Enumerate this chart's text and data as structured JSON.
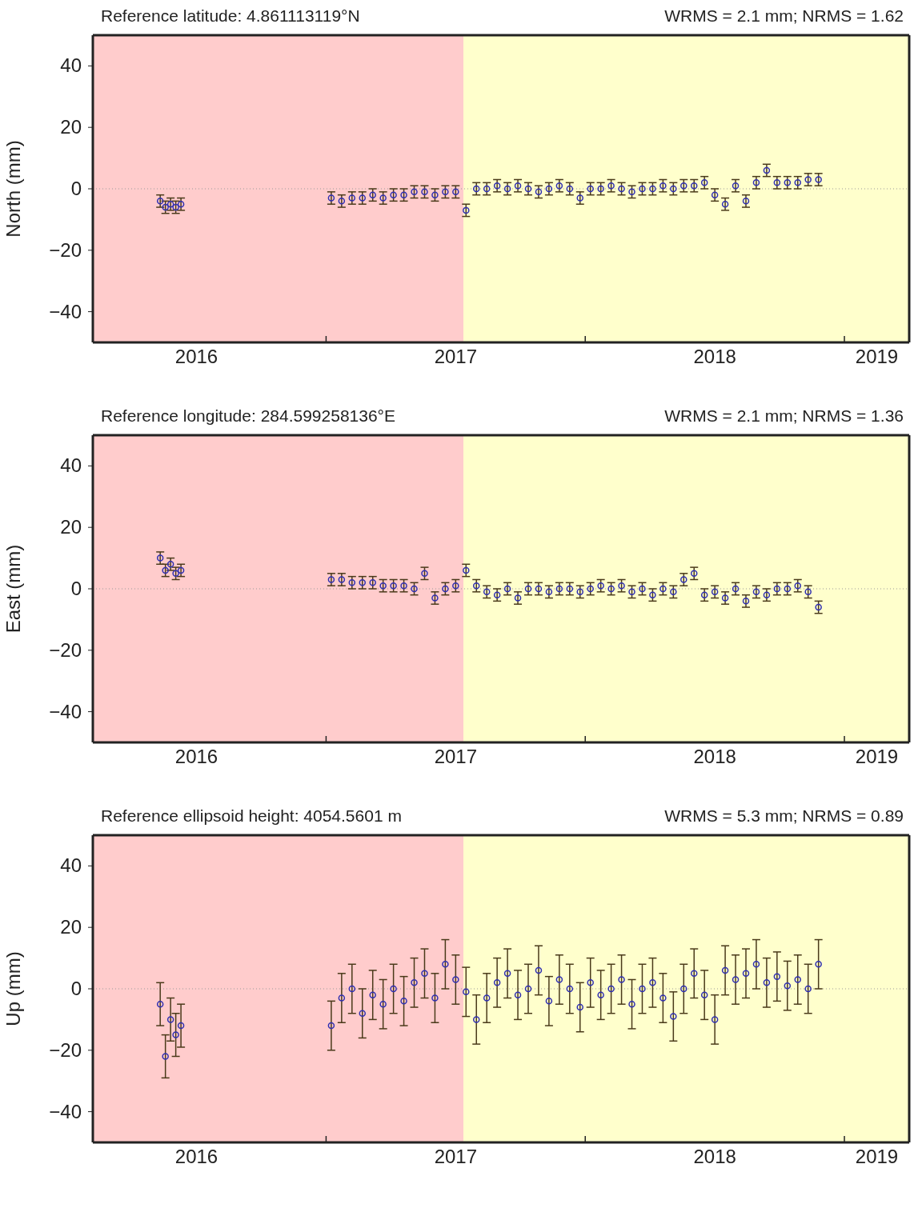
{
  "chart_data": [
    {
      "type": "scatter",
      "title": "Reference latitude: 4.861113119°N",
      "subtitle": "WRMS = 2.1 mm; NRMS = 1.62",
      "ylabel": "North (mm)",
      "color": "#3030b0",
      "marker": "circle",
      "yticks": [
        -40,
        -20,
        0,
        20,
        40
      ],
      "x": [
        2016.36,
        2016.38,
        2016.4,
        2016.42,
        2016.44,
        2017.02,
        2017.06,
        2017.1,
        2017.14,
        2017.18,
        2017.22,
        2017.26,
        2017.3,
        2017.34,
        2017.38,
        2017.42,
        2017.46,
        2017.5,
        2017.54,
        2017.58,
        2017.62,
        2017.66,
        2017.7,
        2017.74,
        2017.78,
        2017.82,
        2017.86,
        2017.9,
        2017.94,
        2017.98,
        2018.02,
        2018.06,
        2018.1,
        2018.14,
        2018.18,
        2018.22,
        2018.26,
        2018.3,
        2018.34,
        2018.38,
        2018.42,
        2018.46,
        2018.5,
        2018.54,
        2018.58,
        2018.62,
        2018.66,
        2018.7,
        2018.74,
        2018.78,
        2018.82,
        2018.86,
        2018.9
      ],
      "values": [
        -4,
        -6,
        -5,
        -6,
        -5,
        -3,
        -4,
        -3,
        -3,
        -2,
        -3,
        -2,
        -2,
        -1,
        -1,
        -2,
        -1,
        -1,
        -7,
        0,
        0,
        1,
        0,
        1,
        0,
        -1,
        0,
        1,
        0,
        -3,
        0,
        0,
        1,
        0,
        -1,
        0,
        0,
        1,
        0,
        1,
        1,
        2,
        -2,
        -5,
        1,
        -4,
        2,
        6,
        2,
        2,
        2,
        3,
        3
      ],
      "errors": [
        2,
        2,
        2,
        2,
        2,
        2,
        2,
        2,
        2,
        2,
        2,
        2,
        2,
        2,
        2,
        2,
        2,
        2,
        2,
        2,
        2,
        2,
        2,
        2,
        2,
        2,
        2,
        2,
        2,
        2,
        2,
        2,
        2,
        2,
        2,
        2,
        2,
        2,
        2,
        2,
        2,
        2,
        2,
        2,
        2,
        2,
        2,
        2,
        2,
        2,
        2,
        2,
        2
      ],
      "xlim": [
        2016.1,
        2019.25
      ],
      "xticks": [
        {
          "value": 2016.5,
          "label": "2016"
        },
        {
          "value": 2017,
          "label": null
        },
        {
          "value": 2017.5,
          "label": "2017"
        },
        {
          "value": 2018,
          "label": null
        },
        {
          "value": 2018.5,
          "label": "2018"
        },
        {
          "value": 2019,
          "label": null
        },
        {
          "value": 2019.125,
          "label": "2019"
        }
      ],
      "ylim": [
        -50,
        50
      ],
      "bands": [
        {
          "axis": "x",
          "from": 2016.1,
          "to": 2017.53,
          "color": "#ffcccc"
        },
        {
          "axis": "x",
          "from": 2017.53,
          "to": 2019.25,
          "color": "#ffffcc"
        }
      ],
      "ref_lines": [
        {
          "axis": "y",
          "value": 0,
          "line_style": "dotted",
          "color": "#999999"
        }
      ]
    },
    {
      "type": "scatter",
      "title": "Reference longitude: 284.599258136°E",
      "subtitle": "WRMS = 2.1 mm; NRMS = 1.36",
      "ylabel": "East (mm)",
      "color": "#3030b0",
      "marker": "circle",
      "yticks": [
        -40,
        -20,
        0,
        20,
        40
      ],
      "x": [
        2016.36,
        2016.38,
        2016.4,
        2016.42,
        2016.44,
        2017.02,
        2017.06,
        2017.1,
        2017.14,
        2017.18,
        2017.22,
        2017.26,
        2017.3,
        2017.34,
        2017.38,
        2017.42,
        2017.46,
        2017.5,
        2017.54,
        2017.58,
        2017.62,
        2017.66,
        2017.7,
        2017.74,
        2017.78,
        2017.82,
        2017.86,
        2017.9,
        2017.94,
        2017.98,
        2018.02,
        2018.06,
        2018.1,
        2018.14,
        2018.18,
        2018.22,
        2018.26,
        2018.3,
        2018.34,
        2018.38,
        2018.42,
        2018.46,
        2018.5,
        2018.54,
        2018.58,
        2018.62,
        2018.66,
        2018.7,
        2018.74,
        2018.78,
        2018.82,
        2018.86,
        2018.9
      ],
      "values": [
        10,
        6,
        8,
        5,
        6,
        3,
        3,
        2,
        2,
        2,
        1,
        1,
        1,
        0,
        5,
        -3,
        0,
        1,
        6,
        1,
        -1,
        -2,
        0,
        -3,
        0,
        0,
        -1,
        0,
        0,
        -1,
        0,
        1,
        0,
        1,
        -1,
        0,
        -2,
        0,
        -1,
        3,
        5,
        -2,
        -1,
        -3,
        0,
        -4,
        -1,
        -2,
        0,
        0,
        1,
        -1,
        -6
      ],
      "errors": [
        2,
        2,
        2,
        2,
        2,
        2,
        2,
        2,
        2,
        2,
        2,
        2,
        2,
        2,
        2,
        2,
        2,
        2,
        2,
        2,
        2,
        2,
        2,
        2,
        2,
        2,
        2,
        2,
        2,
        2,
        2,
        2,
        2,
        2,
        2,
        2,
        2,
        2,
        2,
        2,
        2,
        2,
        2,
        2,
        2,
        2,
        2,
        2,
        2,
        2,
        2,
        2,
        2
      ],
      "xlim": [
        2016.1,
        2019.25
      ],
      "xticks": [
        {
          "value": 2016.5,
          "label": "2016"
        },
        {
          "value": 2017,
          "label": null
        },
        {
          "value": 2017.5,
          "label": "2017"
        },
        {
          "value": 2018,
          "label": null
        },
        {
          "value": 2018.5,
          "label": "2018"
        },
        {
          "value": 2019,
          "label": null
        },
        {
          "value": 2019.125,
          "label": "2019"
        }
      ],
      "ylim": [
        -50,
        50
      ],
      "bands": [
        {
          "axis": "x",
          "from": 2016.1,
          "to": 2017.53,
          "color": "#ffcccc"
        },
        {
          "axis": "x",
          "from": 2017.53,
          "to": 2019.25,
          "color": "#ffffcc"
        }
      ],
      "ref_lines": [
        {
          "axis": "y",
          "value": 0,
          "line_style": "dotted",
          "color": "#999999"
        }
      ]
    },
    {
      "type": "scatter",
      "title": "Reference ellipsoid height: 4054.5601 m",
      "subtitle": "WRMS = 5.3 mm; NRMS = 0.89",
      "ylabel": "Up (mm)",
      "color": "#3030b0",
      "marker": "circle",
      "yticks": [
        -40,
        -20,
        0,
        20,
        40
      ],
      "x": [
        2016.36,
        2016.38,
        2016.4,
        2016.42,
        2016.44,
        2017.02,
        2017.06,
        2017.1,
        2017.14,
        2017.18,
        2017.22,
        2017.26,
        2017.3,
        2017.34,
        2017.38,
        2017.42,
        2017.46,
        2017.5,
        2017.54,
        2017.58,
        2017.62,
        2017.66,
        2017.7,
        2017.74,
        2017.78,
        2017.82,
        2017.86,
        2017.9,
        2017.94,
        2017.98,
        2018.02,
        2018.06,
        2018.1,
        2018.14,
        2018.18,
        2018.22,
        2018.26,
        2018.3,
        2018.34,
        2018.38,
        2018.42,
        2018.46,
        2018.5,
        2018.54,
        2018.58,
        2018.62,
        2018.66,
        2018.7,
        2018.74,
        2018.78,
        2018.82,
        2018.86,
        2018.9
      ],
      "values": [
        -5,
        -22,
        -10,
        -15,
        -12,
        -12,
        -3,
        0,
        -8,
        -2,
        -5,
        0,
        -4,
        2,
        5,
        -3,
        8,
        3,
        -1,
        -10,
        -3,
        2,
        5,
        -2,
        0,
        6,
        -4,
        3,
        0,
        -6,
        2,
        -2,
        0,
        3,
        -5,
        0,
        2,
        -3,
        -9,
        0,
        5,
        -2,
        -10,
        6,
        3,
        5,
        8,
        2,
        4,
        1,
        3,
        0,
        8
      ],
      "errors": [
        7,
        7,
        7,
        7,
        7,
        8,
        8,
        8,
        8,
        8,
        8,
        8,
        8,
        8,
        8,
        8,
        8,
        8,
        8,
        8,
        8,
        8,
        8,
        8,
        8,
        8,
        8,
        8,
        8,
        8,
        8,
        8,
        8,
        8,
        8,
        8,
        8,
        8,
        8,
        8,
        8,
        8,
        8,
        8,
        8,
        8,
        8,
        8,
        8,
        8,
        8,
        8,
        8
      ],
      "xlim": [
        2016.1,
        2019.25
      ],
      "xticks": [
        {
          "value": 2016.5,
          "label": "2016"
        },
        {
          "value": 2017,
          "label": null
        },
        {
          "value": 2017.5,
          "label": "2017"
        },
        {
          "value": 2018,
          "label": null
        },
        {
          "value": 2018.5,
          "label": "2018"
        },
        {
          "value": 2019,
          "label": null
        },
        {
          "value": 2019.125,
          "label": "2019"
        }
      ],
      "ylim": [
        -50,
        50
      ],
      "bands": [
        {
          "axis": "x",
          "from": 2016.1,
          "to": 2017.53,
          "color": "#ffcccc"
        },
        {
          "axis": "x",
          "from": 2017.53,
          "to": 2019.25,
          "color": "#ffffcc"
        }
      ],
      "ref_lines": [
        {
          "axis": "y",
          "value": 0,
          "line_style": "dotted",
          "color": "#999999"
        }
      ]
    }
  ]
}
